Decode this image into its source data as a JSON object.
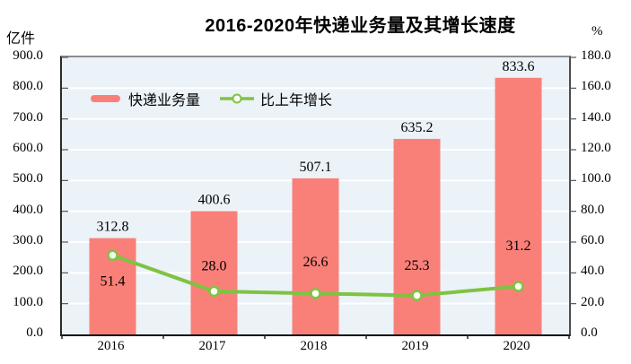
{
  "title": "2016-2020年快递业务量及其增长速度",
  "units": {
    "left": "亿件",
    "right": "%"
  },
  "legend": {
    "bar_label": "快递业务量",
    "line_label": "比上年增长"
  },
  "axes": {
    "left_ticks": [
      "0.0",
      "100.0",
      "200.0",
      "300.0",
      "400.0",
      "500.0",
      "600.0",
      "700.0",
      "800.0",
      "900.0"
    ],
    "right_ticks": [
      "0.0",
      "20.0",
      "40.0",
      "60.0",
      "80.0",
      "100.0",
      "120.0",
      "140.0",
      "160.0",
      "180.0"
    ]
  },
  "chart_data": {
    "type": "combo-bar-line",
    "title": "2016-2020年快递业务量及其增长速度",
    "categories": [
      "2016",
      "2017",
      "2018",
      "2019",
      "2020"
    ],
    "series": [
      {
        "name": "快递业务量",
        "type": "bar",
        "axis": "left",
        "color": "#F98078",
        "values": [
          312.8,
          400.6,
          507.1,
          635.2,
          833.6
        ],
        "labels": [
          "312.8",
          "400.6",
          "507.1",
          "635.2",
          "833.6"
        ]
      },
      {
        "name": "比上年增长",
        "type": "line",
        "axis": "right",
        "color": "#7EC342",
        "marker_fill": "#FDFEF5",
        "values": [
          51.4,
          28.0,
          26.6,
          25.3,
          31.2
        ],
        "labels": [
          "51.4",
          "28.0",
          "26.6",
          "25.3",
          "31.2"
        ]
      }
    ],
    "left_axis": {
      "unit": "亿件",
      "min": 0,
      "max": 900,
      "step": 100
    },
    "right_axis": {
      "unit": "%",
      "min": 0,
      "max": 180,
      "step": 20
    },
    "grid": true,
    "gridline_color": "#FFFFFF",
    "plot_bg": "#EBF2F8",
    "legend_position": "inside-top-left",
    "line_label_offsets": [
      28,
      -29,
      -36,
      -34,
      -46
    ]
  }
}
